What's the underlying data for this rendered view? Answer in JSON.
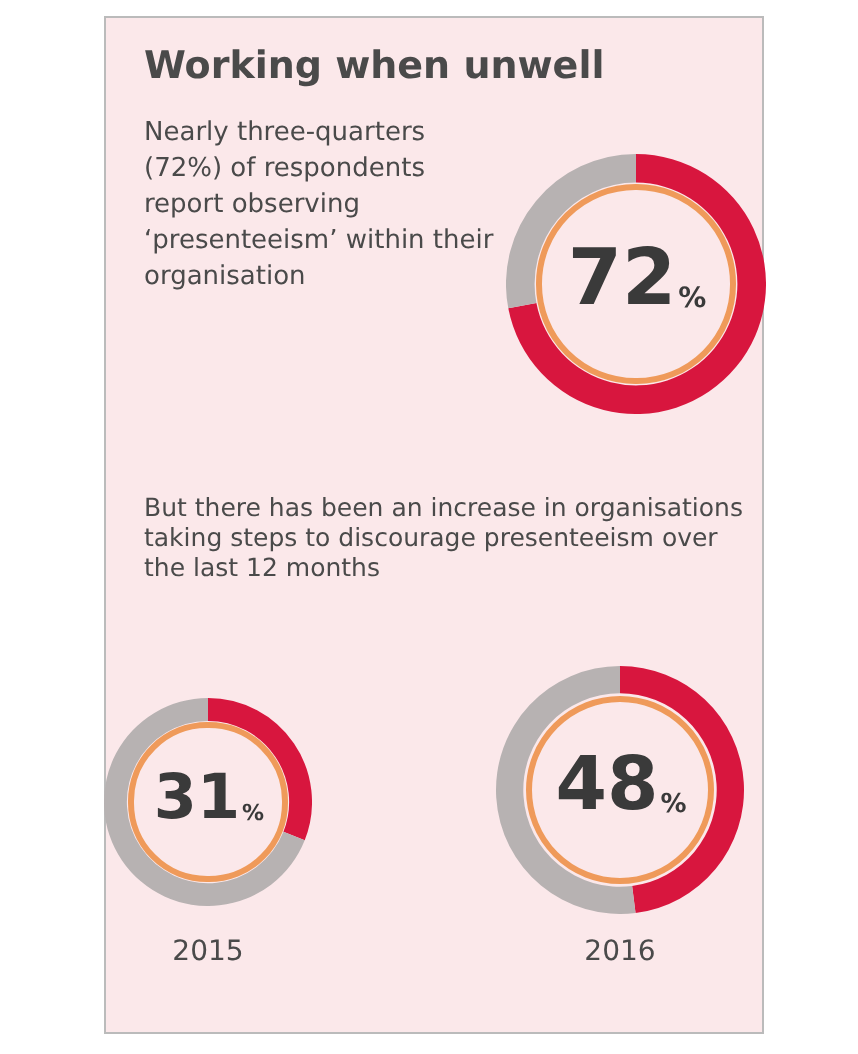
{
  "chart_data": [
    {
      "type": "donut",
      "title": "Working when unwell",
      "subtitle": "Nearly three-quarters (72%) of respondents report observing ‘presenteeism’ within their organisation",
      "categories": [
        null,
        null
      ],
      "values": [
        72,
        28
      ],
      "colors": [
        "#d8163e",
        "#b7b2b2"
      ],
      "value_labels": [
        "72%",
        null
      ]
    },
    {
      "type": "donut",
      "title": "But there has been an increase in organisations taking steps to discourage presenteeism over the last 12 months",
      "xlabel": "2015",
      "categories": [
        null,
        null
      ],
      "values": [
        31,
        69
      ],
      "colors": [
        "#d8163e",
        "#b7b2b2"
      ],
      "value_labels": [
        "31%",
        null
      ]
    },
    {
      "type": "donut",
      "xlabel": "2016",
      "categories": [
        null,
        null
      ],
      "values": [
        48,
        52
      ],
      "colors": [
        "#d8163e",
        "#b7b2b2"
      ],
      "value_labels": [
        "48%",
        null
      ]
    }
  ]
}
